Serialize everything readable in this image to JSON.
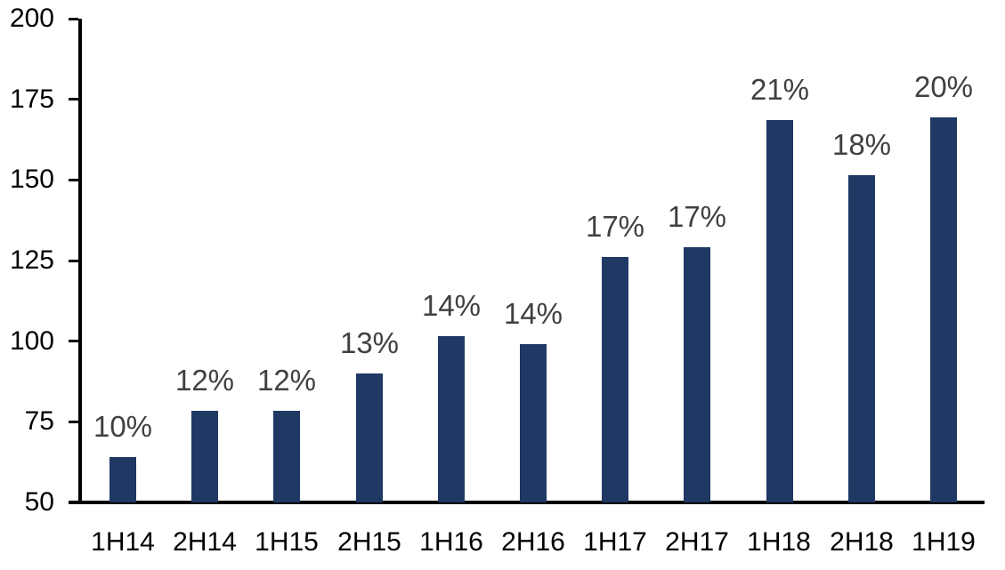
{
  "chart_data": {
    "type": "bar",
    "title": "",
    "categories": [
      "1H14",
      "2H14",
      "1H15",
      "2H15",
      "1H16",
      "2H16",
      "1H17",
      "2H17",
      "1H18",
      "2H18",
      "1H19"
    ],
    "values": [
      64,
      78.5,
      78.5,
      90,
      101.5,
      99,
      126,
      129,
      168.5,
      151.5,
      169.5
    ],
    "bar_labels": [
      "10%",
      "12%",
      "12%",
      "13%",
      "14%",
      "14%",
      "17%",
      "17%",
      "21%",
      "18%",
      "20%"
    ],
    "xlabel": "",
    "ylabel": "",
    "ylim": [
      50,
      200
    ],
    "yticks": [
      50,
      75,
      100,
      125,
      150,
      175,
      200
    ],
    "ytick_labels": [
      "50",
      "75",
      "100",
      "125",
      "150",
      "175",
      "200"
    ],
    "grid": false,
    "legend": "none",
    "colors": {
      "bar": "#1f3864",
      "bar_label": "#404040",
      "axis": "#000000",
      "tick_label": "#000000",
      "background": "#ffffff"
    }
  }
}
